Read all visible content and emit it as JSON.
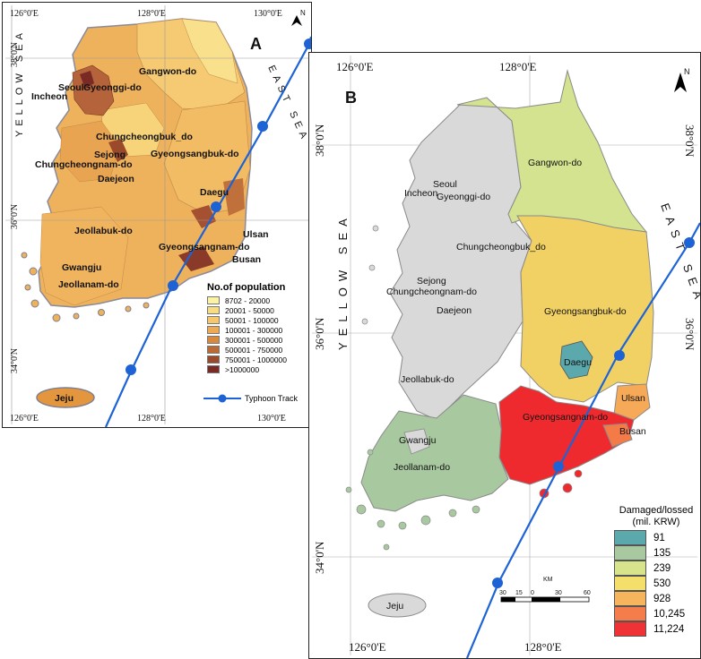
{
  "panel_a": {
    "letter": "A",
    "north": "N",
    "lon_labels": [
      "126°0'E",
      "128°0'E",
      "130°0'E"
    ],
    "lat_labels": [
      "38°0'N",
      "36°0'N",
      "34°0'N"
    ],
    "sea_west": "YELLOW SEA",
    "sea_east": "EAST SEA",
    "regions": [
      "Seoul",
      "Incheon",
      "Gyeonggi-do",
      "Gangwon-do",
      "Chungcheongbuk_do",
      "Sejong",
      "Chungcheongnam-do",
      "Daejeon",
      "Gyeongsangbuk-do",
      "Daegu",
      "Jeollabuk-do",
      "Ulsan",
      "Gyeongsangnam-do",
      "Busan",
      "Gwangju",
      "Jeollanam-do",
      "Jeju"
    ],
    "legend": {
      "title": "No.of population",
      "items": [
        {
          "label": "8702 - 20000",
          "color": "#fbf2a3"
        },
        {
          "label": "20001 - 50000",
          "color": "#f8dc82"
        },
        {
          "label": "50001 - 100000",
          "color": "#f5c86c"
        },
        {
          "label": "100001 - 300000",
          "color": "#eeaa52"
        },
        {
          "label": "300001 - 500000",
          "color": "#d9893d"
        },
        {
          "label": "500001 - 750000",
          "color": "#bb6a33"
        },
        {
          "label": "750001 - 1000000",
          "color": "#9a4a2a"
        },
        {
          "label": ">1000000",
          "color": "#7a2a24"
        }
      ],
      "typhoon_track": "Typhoon Track"
    }
  },
  "panel_b": {
    "letter": "B",
    "north": "N",
    "lon_labels": [
      "126°0'E",
      "128°0'E"
    ],
    "lat_labels": [
      "38°0'N",
      "36°0'N",
      "34°0'N"
    ],
    "sea_west": "YELLOW SEA",
    "sea_east": "EAST SEA",
    "regions": [
      "Gangwon-do",
      "Seoul",
      "Incheon",
      "Gyeonggi-do",
      "Chungcheongbuk_do",
      "Sejong",
      "Chungcheongnam-do",
      "Daejeon",
      "Gyeongsangbuk-do",
      "Daegu",
      "Jeollabuk-do",
      "Ulsan",
      "Gyeongsangnam-do",
      "Busan",
      "Gwangju",
      "Jeollanam-do",
      "Jeju"
    ],
    "legend": {
      "title_line1": "Damaged/lossed",
      "title_line2": "(mil. KRW)",
      "items": [
        {
          "label": "91",
          "color": "#5ba8ad"
        },
        {
          "label": "135",
          "color": "#a8c89f"
        },
        {
          "label": "239",
          "color": "#d8e48c"
        },
        {
          "label": "530",
          "color": "#f4df6a"
        },
        {
          "label": "928",
          "color": "#f6b45c"
        },
        {
          "label": "10,245",
          "color": "#f57d4c"
        },
        {
          "label": "11,224",
          "color": "#ef3236"
        }
      ]
    },
    "scale": {
      "unit": "KM",
      "ticks": [
        "30",
        "15",
        "0",
        "30",
        "60"
      ]
    }
  }
}
